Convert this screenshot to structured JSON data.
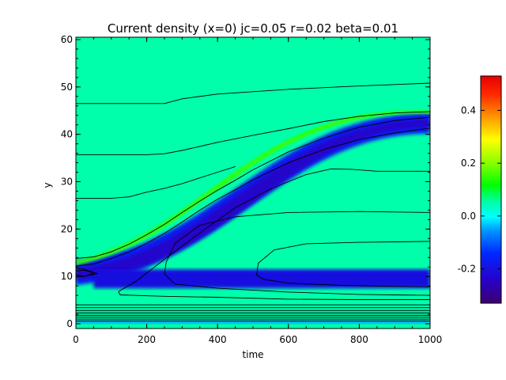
{
  "chart_data": {
    "type": "heatmap",
    "title": "Current density (x=0) jc=0.05 r=0.02 beta=0.01",
    "xlabel": "time",
    "ylabel": "y",
    "xlim": [
      0,
      1000
    ],
    "ylim": [
      -1,
      60.5
    ],
    "x_ticks": [
      "0",
      "200",
      "400",
      "600",
      "800",
      "1000"
    ],
    "y_ticks": [
      "0",
      "10",
      "20",
      "30",
      "40",
      "50",
      "60"
    ],
    "colorbar": {
      "range": [
        -0.33,
        0.53
      ],
      "ticks": [
        "-0.2",
        "0.0",
        "0.2",
        "0.4"
      ],
      "colormap": "rainbow (purple-blue-cyan-green-yellow-red)"
    },
    "background_value": 0.05,
    "features": [
      {
        "name": "main negative current band",
        "kind": "diagonal_band",
        "from": [
          0,
          10.5
        ],
        "to": [
          1000,
          42.5
        ],
        "value": -0.17
      },
      {
        "name": "lower negative current band",
        "kind": "horizontal_band",
        "from": [
          50,
          7.5
        ],
        "to": [
          1000,
          11.5
        ],
        "value": -0.2
      },
      {
        "name": "positive ridge above band",
        "kind": "diagonal_ridge",
        "from": [
          0,
          13
        ],
        "to": [
          1000,
          45
        ],
        "value": 0.15
      },
      {
        "name": "bottom boundary layer",
        "kind": "horizontal_band",
        "from": [
          0,
          0
        ],
        "to": [
          1000,
          0.8
        ],
        "value": -0.05
      }
    ],
    "contours": [
      {
        "x": [
          0,
          250,
          300,
          400,
          600,
          800,
          1000
        ],
        "y": [
          46.5,
          46.5,
          47.5,
          48.5,
          49.5,
          50.2,
          50.8
        ]
      },
      {
        "x": [
          0,
          200,
          250,
          300,
          400,
          500,
          600,
          700,
          800,
          900,
          1000
        ],
        "y": [
          35.7,
          35.7,
          35.9,
          36.6,
          38.3,
          39.8,
          41.2,
          42.7,
          43.8,
          44.5,
          44.8
        ]
      },
      {
        "x": [
          0,
          100,
          150,
          200,
          250,
          300,
          350,
          400,
          450
        ],
        "y": [
          26.5,
          26.5,
          26.8,
          27.8,
          28.6,
          29.6,
          30.8,
          32,
          33.2
        ]
      },
      {
        "x": [
          0,
          50,
          100,
          150,
          200,
          250,
          300,
          350,
          400,
          450,
          500,
          600,
          700,
          800,
          900,
          1000
        ],
        "y": [
          13.8,
          14.1,
          15.2,
          16.8,
          18.8,
          21,
          23.5,
          25.9,
          28.2,
          30.3,
          32.5,
          36.3,
          39.2,
          41.5,
          42.9,
          43.6
        ]
      },
      {
        "x": [
          0,
          50,
          100,
          150,
          200,
          250,
          300,
          350,
          400,
          450,
          500,
          600,
          700,
          800,
          900,
          1000
        ],
        "y": [
          12.2,
          12.6,
          13.8,
          15.2,
          17,
          19.1,
          21.5,
          24,
          26.3,
          28.3,
          30.4,
          34,
          36.8,
          38.9,
          40.3,
          41.3
        ]
      },
      {
        "x": [
          1000,
          850,
          780,
          720,
          650,
          550,
          450,
          350,
          250,
          170,
          120,
          125,
          250,
          400,
          600,
          800,
          1000
        ],
        "y": [
          32.2,
          32.2,
          32.6,
          32.7,
          31.5,
          28.5,
          24.5,
          19.2,
          13.6,
          9,
          6.8,
          6.1,
          5.8,
          5.6,
          5.2,
          5.1,
          5.1
        ]
      },
      {
        "x": [
          1000,
          800,
          600,
          450,
          350,
          280,
          255,
          250,
          280,
          400,
          600,
          800,
          1000
        ],
        "y": [
          23.5,
          23.7,
          23.5,
          22.6,
          20.8,
          17,
          13,
          10.5,
          8.4,
          7.5,
          6.7,
          6.2,
          6
        ]
      },
      {
        "x": [
          1000,
          800,
          650,
          560,
          515,
          510,
          530,
          600,
          750,
          900,
          1000
        ],
        "y": [
          17.4,
          17.2,
          16.9,
          15.6,
          12.8,
          10.3,
          9.4,
          8.6,
          8.1,
          7.9,
          7.8
        ]
      },
      {
        "x": [
          0,
          25,
          50,
          25,
          0
        ],
        "y": [
          11.2,
          11.3,
          10.7,
          10.0,
          10.4
        ]
      },
      {
        "x": [
          0,
          20,
          60,
          20,
          0
        ],
        "y": [
          9.9,
          10.0,
          10.6,
          11.6,
          11.7
        ]
      }
    ],
    "bottom_contour_levels": [
      0.6,
      1.0,
      1.4,
      1.8,
      2.3,
      2.8,
      3.4,
      4.0
    ]
  }
}
